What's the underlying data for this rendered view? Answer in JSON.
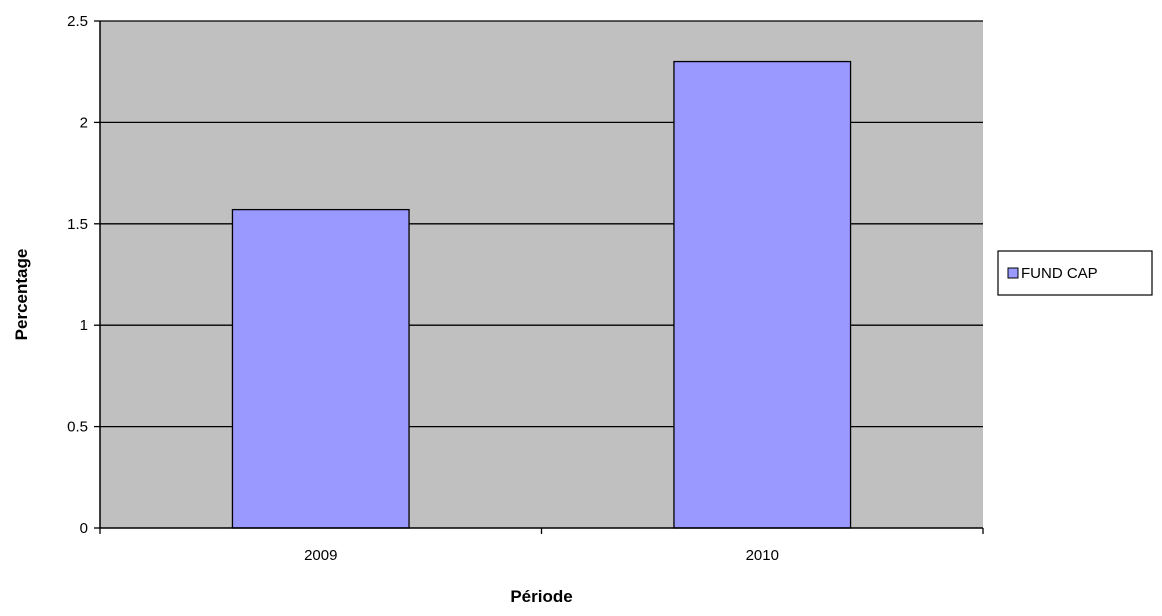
{
  "chart_data": {
    "type": "bar",
    "categories": [
      "2009",
      "2010"
    ],
    "series": [
      {
        "name": "FUND CAP",
        "values": [
          1.57,
          2.3
        ]
      }
    ],
    "xlabel": "Période",
    "ylabel": "Percentage",
    "ylim": [
      0,
      2.5
    ],
    "yticks": [
      "0",
      "0.5",
      "1",
      "1.5",
      "2",
      "2.5"
    ],
    "grid": true,
    "legend_position": "right",
    "colors": {
      "plot_background": "#c0c0c0",
      "bar_fill": "#9999ff",
      "bar_stroke": "#000000",
      "gridline": "#000000"
    }
  }
}
